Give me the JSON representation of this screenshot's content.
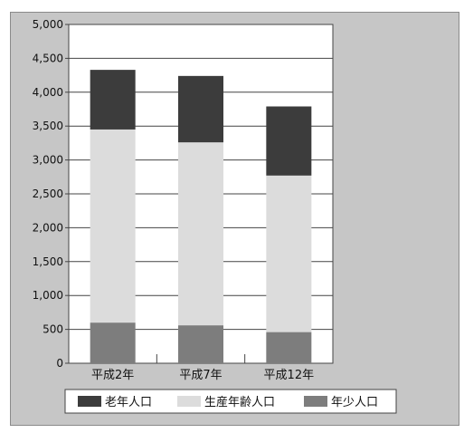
{
  "chart_data": {
    "type": "bar",
    "stacked": true,
    "categories": [
      "平成2年",
      "平成7年",
      "平成12年"
    ],
    "series": [
      {
        "name": "年少人口",
        "values": [
          600,
          560,
          460
        ],
        "color": "#7d7d7d"
      },
      {
        "name": "生産年齢人口",
        "values": [
          2850,
          2700,
          2310
        ],
        "color": "#dcdcdc"
      },
      {
        "name": "老年人口",
        "values": [
          880,
          980,
          1020
        ],
        "color": "#3c3c3c"
      }
    ],
    "ylim": [
      0,
      5000
    ],
    "yticks": [
      0,
      500,
      1000,
      1500,
      2000,
      2500,
      3000,
      3500,
      4000,
      4500,
      5000
    ],
    "ytick_labels": [
      "0",
      "500",
      "1,000",
      "1,500",
      "2,000",
      "2,500",
      "3,000",
      "3,500",
      "4,000",
      "4,500",
      "5,000"
    ],
    "grid": true,
    "legend": {
      "placement": "bottom",
      "items": [
        "老年人口",
        "生産年齢人口",
        "年少人口"
      ]
    },
    "colors": {
      "background": "#c6c6c6",
      "plot_area": "#ffffff",
      "gridline": "#444444"
    }
  }
}
